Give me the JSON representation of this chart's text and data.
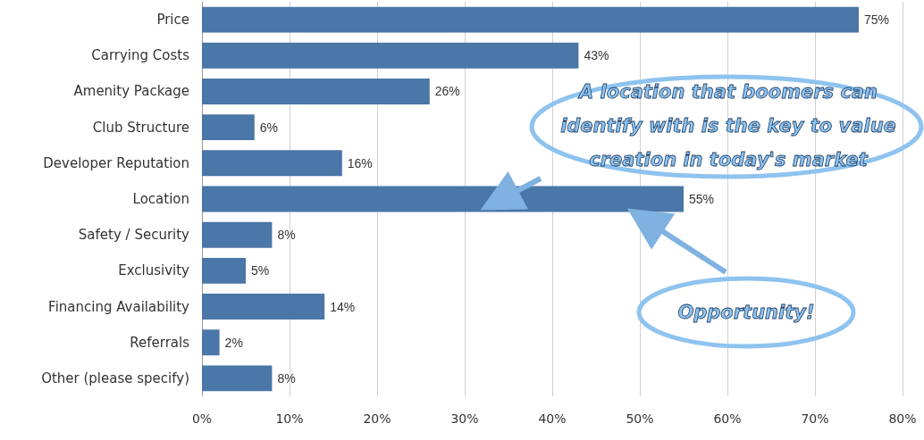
{
  "chart_data": {
    "type": "bar",
    "orientation": "horizontal",
    "categories": [
      "Price",
      "Carrying Costs",
      "Amenity Package",
      "Club Structure",
      "Developer Reputation",
      "Location",
      "Safety / Security",
      "Exclusivity",
      "Financing Availability",
      "Referrals",
      "Other (please specify)"
    ],
    "values": [
      75,
      43,
      26,
      6,
      16,
      55,
      8,
      5,
      14,
      2,
      8
    ],
    "value_labels": [
      "75%",
      "43%",
      "26%",
      "6%",
      "16%",
      "55%",
      "8%",
      "5%",
      "14%",
      "2%",
      "8%"
    ],
    "color": "#4a76a8",
    "xlim": [
      0,
      80
    ],
    "xticks": [
      {
        "value": 0,
        "label": "0%"
      },
      {
        "value": 10,
        "label": "10%"
      },
      {
        "value": 20,
        "label": "20%"
      },
      {
        "value": 30,
        "label": "30%"
      },
      {
        "value": 40,
        "label": "40%"
      },
      {
        "value": 50,
        "label": "50%"
      },
      {
        "value": 60,
        "label": "60%"
      },
      {
        "value": 70,
        "label": "70%"
      },
      {
        "value": 80,
        "label": "80%"
      }
    ],
    "grid": "x",
    "annotations": [
      "A location that boomers can identify with is the key to value creation in today's market",
      "Opportunity!"
    ]
  }
}
